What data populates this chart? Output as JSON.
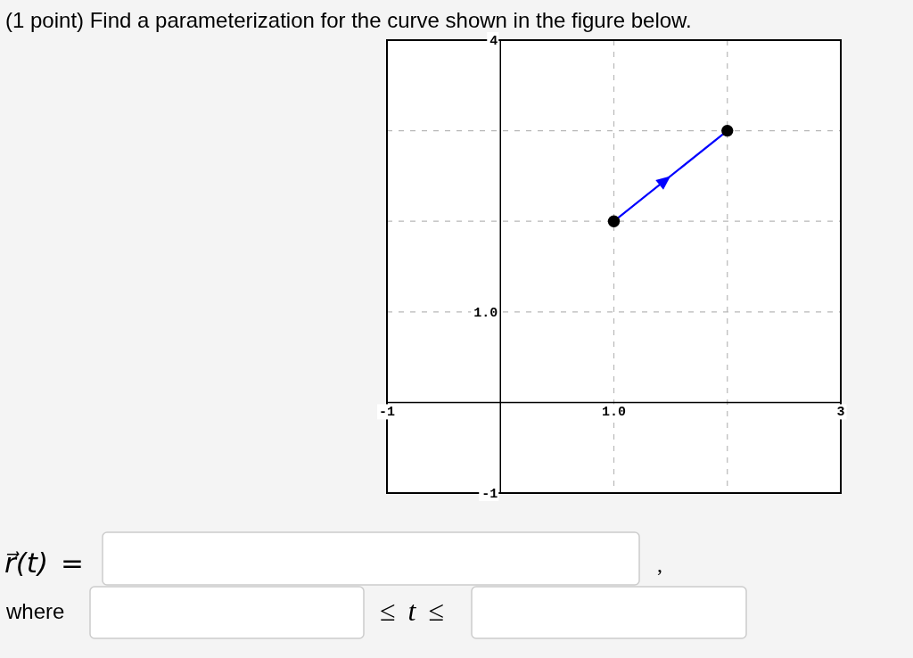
{
  "chart_data": {
    "type": "line",
    "title": "(1 point) Find a parameterization for the curve shown in the figure below.",
    "x": [
      1,
      2
    ],
    "series": [
      {
        "color": "#0000ff",
        "values": [
          2,
          3
        ],
        "marker": "none"
      },
      {
        "type": "scatter",
        "color": "#000000",
        "values": [
          2,
          3
        ],
        "marker": "circle"
      }
    ],
    "grid": true,
    "xlim": [
      -1,
      3
    ],
    "ylim": [
      -1,
      4
    ],
    "xticks": [
      -1,
      {
        "value": 1,
        "label": "1.0"
      },
      {
        "value": 2,
        "label": null
      },
      3
    ],
    "yticks": [
      -1,
      {
        "value": 1,
        "label": "1.0"
      },
      {
        "value": 2,
        "label": null
      },
      {
        "value": 3,
        "label": null
      },
      4
    ],
    "annotations": [
      "r⃗(t) =",
      ",",
      "where",
      "≤ t ≤"
    ]
  }
}
